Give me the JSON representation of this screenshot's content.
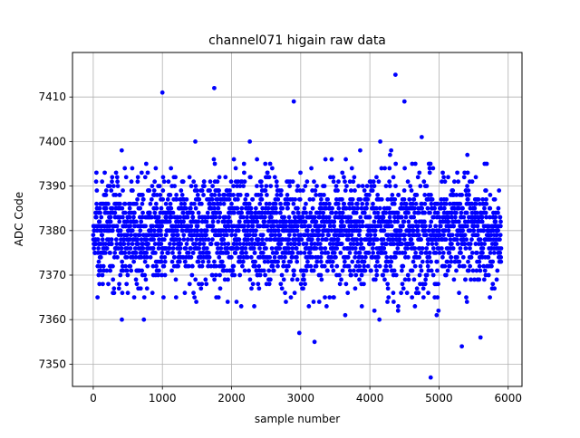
{
  "chart_data": {
    "type": "scatter",
    "title": "channel071 higain raw data",
    "xlabel": "sample number",
    "ylabel": "ADC Code",
    "xlim": [
      -300,
      6200
    ],
    "ylim": [
      7345,
      7420
    ],
    "xticks": [
      0,
      1000,
      2000,
      3000,
      4000,
      5000,
      6000
    ],
    "yticks": [
      7350,
      7360,
      7370,
      7380,
      7390,
      7400,
      7410
    ],
    "grid": true,
    "color": "#0000ff",
    "n_samples": 5900,
    "distribution": {
      "center": 7380,
      "spread": 6.2,
      "min": 7347,
      "max": 7415
    },
    "notable_points": [
      {
        "x": 1000,
        "y": 7411
      },
      {
        "x": 1750,
        "y": 7412
      },
      {
        "x": 2900,
        "y": 7409
      },
      {
        "x": 4370,
        "y": 7415
      },
      {
        "x": 4500,
        "y": 7409
      },
      {
        "x": 3200,
        "y": 7355
      },
      {
        "x": 2980,
        "y": 7357
      },
      {
        "x": 5330,
        "y": 7354
      },
      {
        "x": 5600,
        "y": 7356
      },
      {
        "x": 4880,
        "y": 7347
      }
    ]
  }
}
